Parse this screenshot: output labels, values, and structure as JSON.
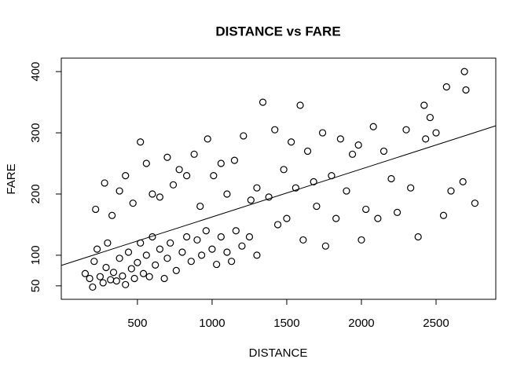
{
  "chart_data": {
    "type": "scatter",
    "title": "DISTANCE vs FARE",
    "x_label": "DISTANCE",
    "y_label": "FARE",
    "xlim": [
      -10,
      2900
    ],
    "ylim": [
      28,
      422
    ],
    "xticks": [
      500,
      1000,
      1500,
      2000,
      2500
    ],
    "yticks": [
      50,
      100,
      200,
      300,
      400
    ],
    "color": "#000000",
    "fit": {
      "intercept": 84.1,
      "slope": 0.0784
    },
    "x": [
      150,
      180,
      200,
      210,
      230,
      250,
      270,
      290,
      300,
      320,
      340,
      360,
      380,
      400,
      420,
      440,
      460,
      480,
      500,
      520,
      540,
      560,
      580,
      600,
      620,
      650,
      680,
      700,
      720,
      760,
      800,
      830,
      860,
      900,
      930,
      960,
      1000,
      1030,
      1060,
      1100,
      1130,
      1160,
      1200,
      1250,
      1300,
      220,
      280,
      330,
      380,
      420,
      470,
      520,
      560,
      600,
      650,
      700,
      740,
      780,
      830,
      880,
      920,
      970,
      1010,
      1060,
      1100,
      1150,
      1210,
      1260,
      1300,
      1340,
      1380,
      1420,
      1440,
      1480,
      1500,
      1530,
      1560,
      1590,
      1610,
      1640,
      1680,
      1700,
      1740,
      1760,
      1800,
      1830,
      1860,
      1900,
      1940,
      1980,
      2000,
      2030,
      2080,
      2110,
      2150,
      2200,
      2240,
      2300,
      2330,
      2380,
      2420,
      2430,
      2460,
      2500,
      2550,
      2570,
      2600,
      2680,
      2690,
      2700,
      2760
    ],
    "values": [
      70,
      62,
      48,
      90,
      110,
      65,
      55,
      80,
      120,
      60,
      72,
      58,
      95,
      66,
      52,
      105,
      78,
      62,
      88,
      120,
      70,
      100,
      65,
      130,
      84,
      110,
      62,
      95,
      120,
      75,
      105,
      130,
      90,
      125,
      100,
      140,
      110,
      85,
      130,
      105,
      90,
      140,
      115,
      130,
      100,
      175,
      218,
      165,
      205,
      230,
      185,
      285,
      250,
      200,
      195,
      260,
      215,
      240,
      230,
      265,
      180,
      290,
      230,
      250,
      200,
      255,
      295,
      190,
      210,
      350,
      195,
      305,
      150,
      240,
      160,
      285,
      210,
      345,
      125,
      270,
      220,
      180,
      300,
      115,
      230,
      160,
      290,
      205,
      265,
      280,
      125,
      175,
      310,
      160,
      270,
      225,
      170,
      305,
      210,
      130,
      345,
      290,
      325,
      300,
      165,
      375,
      205,
      220,
      400,
      370,
      185
    ]
  }
}
